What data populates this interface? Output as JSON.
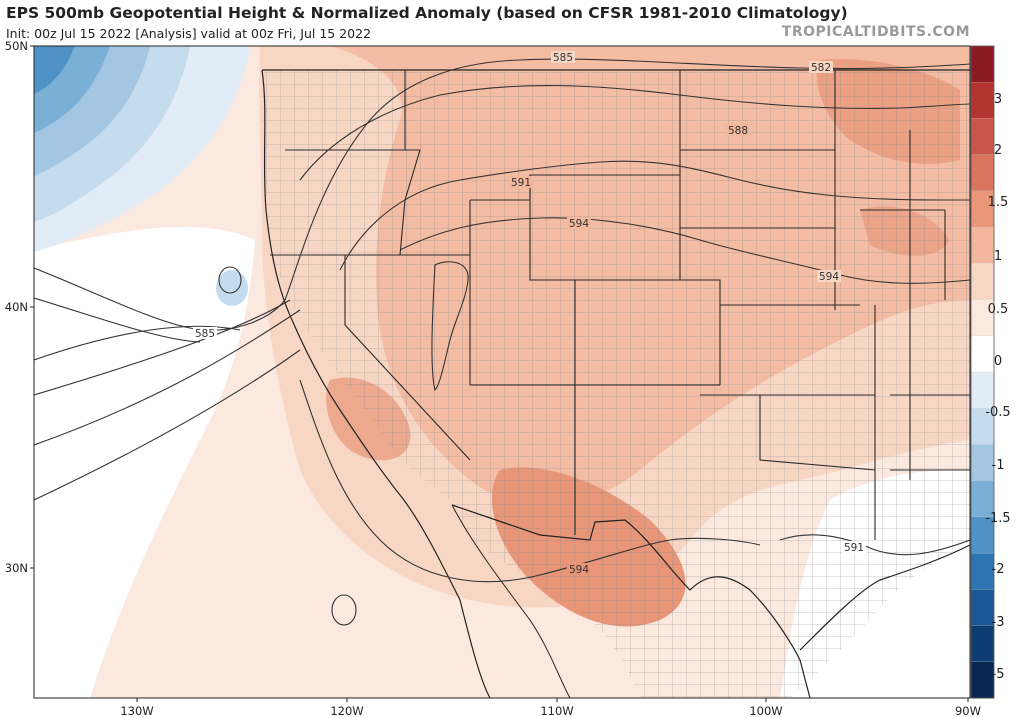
{
  "header": {
    "title": "EPS 500mb Geopotential Height & Normalized Anomaly (based on CFSR 1981-2010 Climatology)",
    "subtitle": "Init: 00z Jul 15 2022   [Analysis]   valid at 00z Fri, Jul 15 2022",
    "watermark": "TROPICALTIDBITS.COM"
  },
  "axes": {
    "lat_labels": [
      "50N",
      "40N",
      "30N"
    ],
    "lon_labels": [
      "130W",
      "120W",
      "110W",
      "100W",
      "90W"
    ]
  },
  "colorbar": {
    "labels": [
      "3",
      "2",
      "1.5",
      "1",
      "0.5",
      "0",
      "-0.5",
      "-1",
      "-1.5",
      "-2",
      "-3",
      "-5"
    ],
    "colors": [
      "#8b1a22",
      "#b3342f",
      "#c9564a",
      "#d9745f",
      "#e89578",
      "#f2b79d",
      "#f8d6c4",
      "#fbe9df",
      "#ffffff",
      "#e1ecf6",
      "#c5dcee",
      "#a3c7e3",
      "#7aafd6",
      "#4f93c6",
      "#2d74b2",
      "#1a5696",
      "#0f3b73",
      "#082650"
    ]
  },
  "contours": {
    "labels": [
      "585",
      "582",
      "588",
      "591",
      "594",
      "585",
      "594",
      "591",
      "594"
    ]
  },
  "colors": {
    "state_border": "#2a2a2a",
    "county_border": "#8c8c8c",
    "contour": "#333333"
  }
}
